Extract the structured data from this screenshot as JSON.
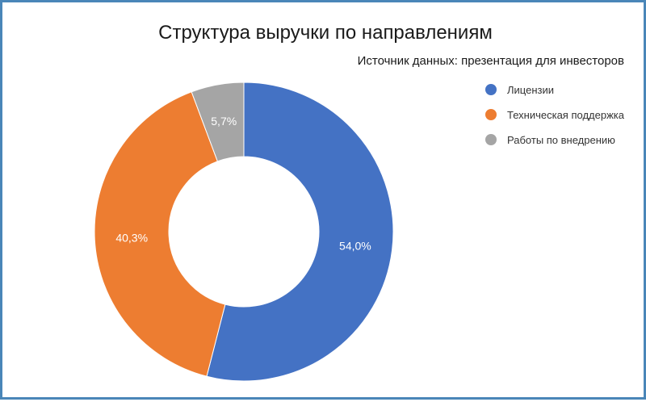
{
  "chart_data": {
    "type": "pie",
    "variant": "donut",
    "title": "Структура выручки по направлениям",
    "subtitle": "Источник данных: презентация для инвесторов",
    "categories": [
      "Лицензии",
      "Техническая поддержка",
      "Работы по внедрению"
    ],
    "values": [
      54.0,
      40.3,
      5.7
    ],
    "value_labels": [
      "54,0%",
      "40,3%",
      "5,7%"
    ],
    "colors": [
      "#4472c4",
      "#ed7d31",
      "#a5a5a5"
    ],
    "legend_position": "right"
  },
  "theme": {
    "border_color": "#4a86b8"
  }
}
